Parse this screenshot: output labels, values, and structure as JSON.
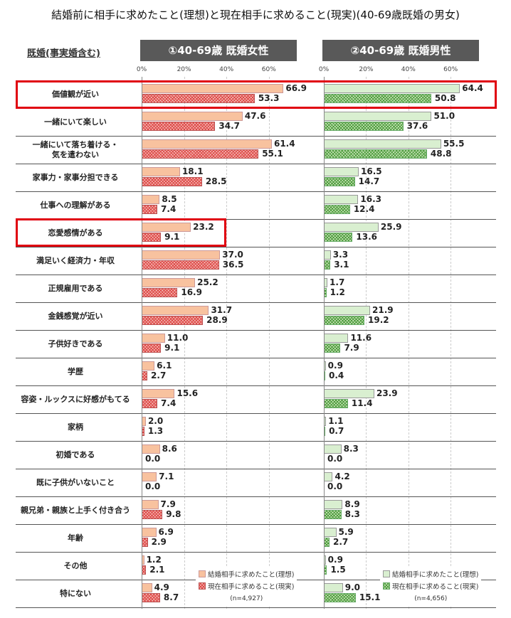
{
  "title": "結婚前に相手に求めたこと(理想)と現在相手に求めること(現実)(40-69歳既婚の男女)",
  "sublabel": "既婚(事実婚含む)",
  "colors": {
    "highlight": "#e00010",
    "header": "#595959",
    "women_ideal": "#f8c29f",
    "women_real": "#e06060",
    "men_ideal": "#d9efd0",
    "men_real": "#4a9a3a"
  },
  "chart_data": [
    {
      "type": "bar",
      "title": "①40-69歳 既婚女性",
      "xlim": [
        0,
        70
      ],
      "ticks": [
        "0%",
        "20%",
        "40%",
        "60%"
      ],
      "legend": [
        "結婚相手に求めたこと(理想)",
        "現在相手に求めること(現実)"
      ],
      "n": "(n=4,927)",
      "categories": [
        "価値観が近い",
        "一緒にいて楽しい",
        "一緒にいて落ち着ける・\n気を遣わない",
        "家事力・家事分担できる",
        "仕事への理解がある",
        "恋愛感情がある",
        "満足いく経済力・年収",
        "正規雇用である",
        "金銭感覚が近い",
        "子供好きである",
        "学歴",
        "容姿・ルックスに好感がもてる",
        "家柄",
        "初婚である",
        "既に子供がいないこと",
        "親兄弟・親族と上手く付き合う",
        "年齢",
        "その他",
        "特にない"
      ],
      "series": [
        {
          "name": "理想",
          "values": [
            66.9,
            47.6,
            61.4,
            18.1,
            8.5,
            23.2,
            37.0,
            25.2,
            31.7,
            11.0,
            6.1,
            15.6,
            2.0,
            8.6,
            7.1,
            7.9,
            6.9,
            1.2,
            4.9
          ]
        },
        {
          "name": "現実",
          "values": [
            53.3,
            34.7,
            55.1,
            28.5,
            7.4,
            9.1,
            36.5,
            16.9,
            28.9,
            9.1,
            2.7,
            7.4,
            1.3,
            0.0,
            0.0,
            9.8,
            2.9,
            2.1,
            8.7
          ]
        }
      ]
    },
    {
      "type": "bar",
      "title": "②40-69歳 既婚男性",
      "xlim": [
        0,
        70
      ],
      "ticks": [
        "0%",
        "20%",
        "40%",
        "60%"
      ],
      "legend": [
        "結婚相手に求めたこと(理想)",
        "現在相手に求めること(現実)"
      ],
      "n": "(n=4,656)",
      "series": [
        {
          "name": "理想",
          "values": [
            64.4,
            51.0,
            55.5,
            16.5,
            16.3,
            25.9,
            3.3,
            1.7,
            21.9,
            11.6,
            0.9,
            23.9,
            1.1,
            8.3,
            4.2,
            8.9,
            5.9,
            0.9,
            9.0
          ]
        },
        {
          "name": "現実",
          "values": [
            50.8,
            37.6,
            48.8,
            14.7,
            12.4,
            13.6,
            3.1,
            1.2,
            19.2,
            7.9,
            0.4,
            11.4,
            0.7,
            0.0,
            0.0,
            8.3,
            2.7,
            1.5,
            15.1
          ]
        }
      ]
    }
  ]
}
